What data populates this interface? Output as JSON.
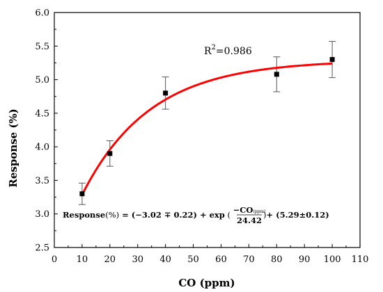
{
  "chart_data": {
    "type": "scatter",
    "xlabel": "CO (ppm)",
    "ylabel": "Response (%)",
    "xlim": [
      0,
      110
    ],
    "ylim": [
      2.5,
      6.0
    ],
    "xticks": [
      "0",
      "10",
      "20",
      "30",
      "40",
      "50",
      "60",
      "70",
      "80",
      "90",
      "100",
      "110"
    ],
    "yticks": [
      "2.5",
      "3.0",
      "3.5",
      "4.0",
      "4.5",
      "5.0",
      "5.5",
      "6.0"
    ],
    "grid": false,
    "points": [
      {
        "x": 10,
        "y": 3.3,
        "err": 0.16
      },
      {
        "x": 20,
        "y": 3.9,
        "err": 0.19
      },
      {
        "x": 40,
        "y": 4.8,
        "err": 0.24
      },
      {
        "x": 80,
        "y": 5.08,
        "err": 0.26
      },
      {
        "x": 100,
        "y": 5.3,
        "err": 0.27
      }
    ],
    "fit": {
      "a": -3.02,
      "b": 5.29,
      "t": 24.42,
      "color": "#ff0000"
    },
    "marker_color": "#000000"
  },
  "annotations": {
    "r2_prefix": "R",
    "r2_exp": "2",
    "r2_value": "=0.986",
    "eq_lhs": "Response",
    "eq_pct": "(%)",
    "eq_mid": " = (−3.02 ∓ 0.22) + ",
    "eq_exp": "exp",
    "eq_open": " (",
    "eq_num": "−CO",
    "eq_num_sub": "(ppm)",
    "eq_den": "24.42",
    "eq_close": ")",
    "eq_tail": "+ (5.29±0.12)"
  }
}
